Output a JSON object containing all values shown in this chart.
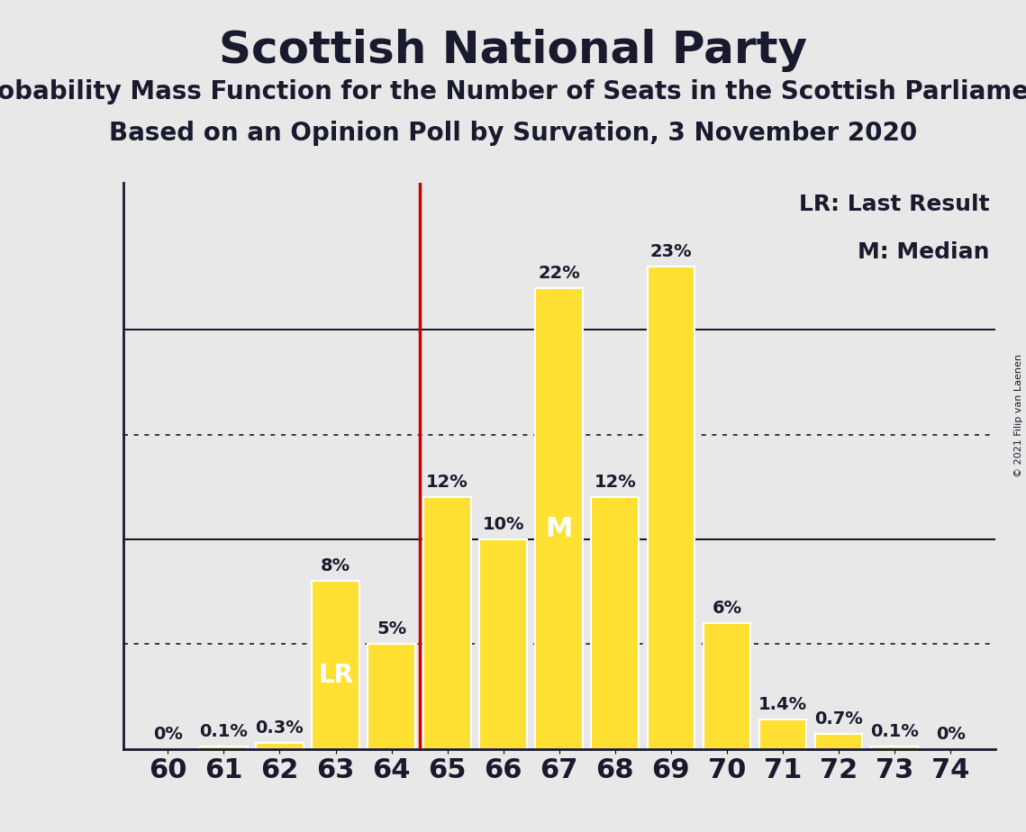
{
  "title": "Scottish National Party",
  "subtitle1": "Probability Mass Function for the Number of Seats in the Scottish Parliament",
  "subtitle2": "Based on an Opinion Poll by Survation, 3 November 2020",
  "copyright": "© 2021 Filip van Laenen",
  "seats": [
    60,
    61,
    62,
    63,
    64,
    65,
    66,
    67,
    68,
    69,
    70,
    71,
    72,
    73,
    74
  ],
  "probabilities": [
    0.0,
    0.1,
    0.3,
    8.0,
    5.0,
    12.0,
    10.0,
    22.0,
    12.0,
    23.0,
    6.0,
    1.4,
    0.7,
    0.1,
    0.0
  ],
  "bar_color": "#FFE033",
  "bar_edge_color": "#FFFFFF",
  "last_result_seat": 63,
  "median_seat": 67,
  "lr_line_color": "#CC0000",
  "background_color": "#E8E8E8",
  "axis_color": "#1a1a2e",
  "title_color": "#1a1a2e",
  "label_color": "#1a1a2e",
  "dotted_lines": [
    5.0,
    15.0
  ],
  "solid_lines": [
    10.0,
    20.0
  ],
  "legend_lr": "LR: Last Result",
  "legend_m": "M: Median",
  "bar_label_fontsize": 14,
  "axis_label_fontsize": 22,
  "title_fontsize": 36,
  "subtitle_fontsize": 20,
  "legend_fontsize": 18,
  "lr_label_fontsize": 20,
  "m_label_fontsize": 22,
  "ylim": [
    0,
    27
  ],
  "xlim": [
    59.2,
    74.8
  ]
}
